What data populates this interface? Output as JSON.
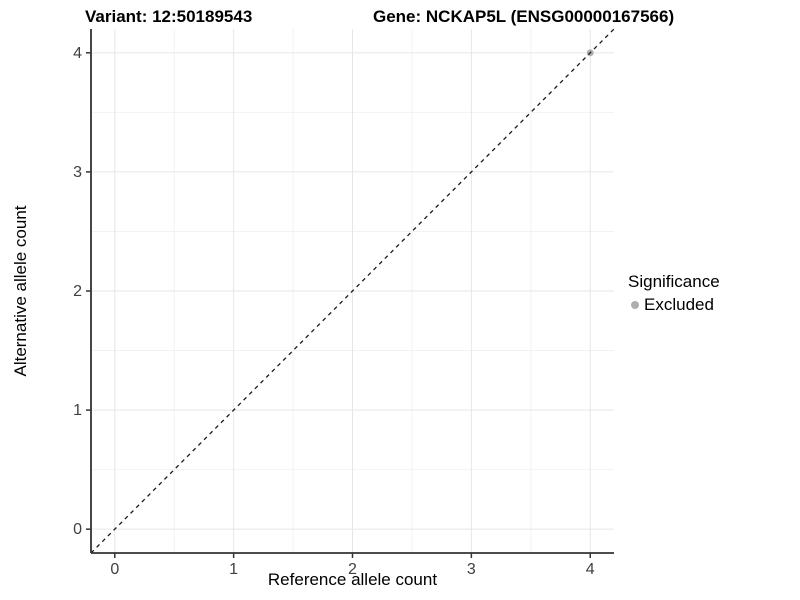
{
  "chart_data": {
    "type": "scatter",
    "title_left": "Variant: 12:50189543",
    "title_right": "Gene: NCKAP5L (ENSG00000167566)",
    "xlabel": "Reference allele count",
    "ylabel": "Alternative allele count",
    "xlim": [
      -0.2,
      4.2
    ],
    "ylim": [
      -0.2,
      4.2
    ],
    "x_ticks": [
      0,
      1,
      2,
      3,
      4
    ],
    "y_ticks": [
      0,
      1,
      2,
      3,
      4
    ],
    "grid": {
      "major": true,
      "minor": true,
      "major_color": "#e6e6e6",
      "minor_color": "#f2f2f2"
    },
    "axis_color": "#333333",
    "tick_label_color": "#404040",
    "identity_line": {
      "style": "dashed",
      "color": "#1a1a1a",
      "from": -0.2,
      "to": 4.2
    },
    "series": [
      {
        "name": "Excluded",
        "color": "#aeaeae",
        "points": [
          {
            "x": 4,
            "y": 4
          }
        ]
      }
    ],
    "legend": {
      "title": "Significance",
      "position": "right",
      "items": [
        {
          "label": "Excluded",
          "color": "#aeaeae"
        }
      ]
    }
  }
}
